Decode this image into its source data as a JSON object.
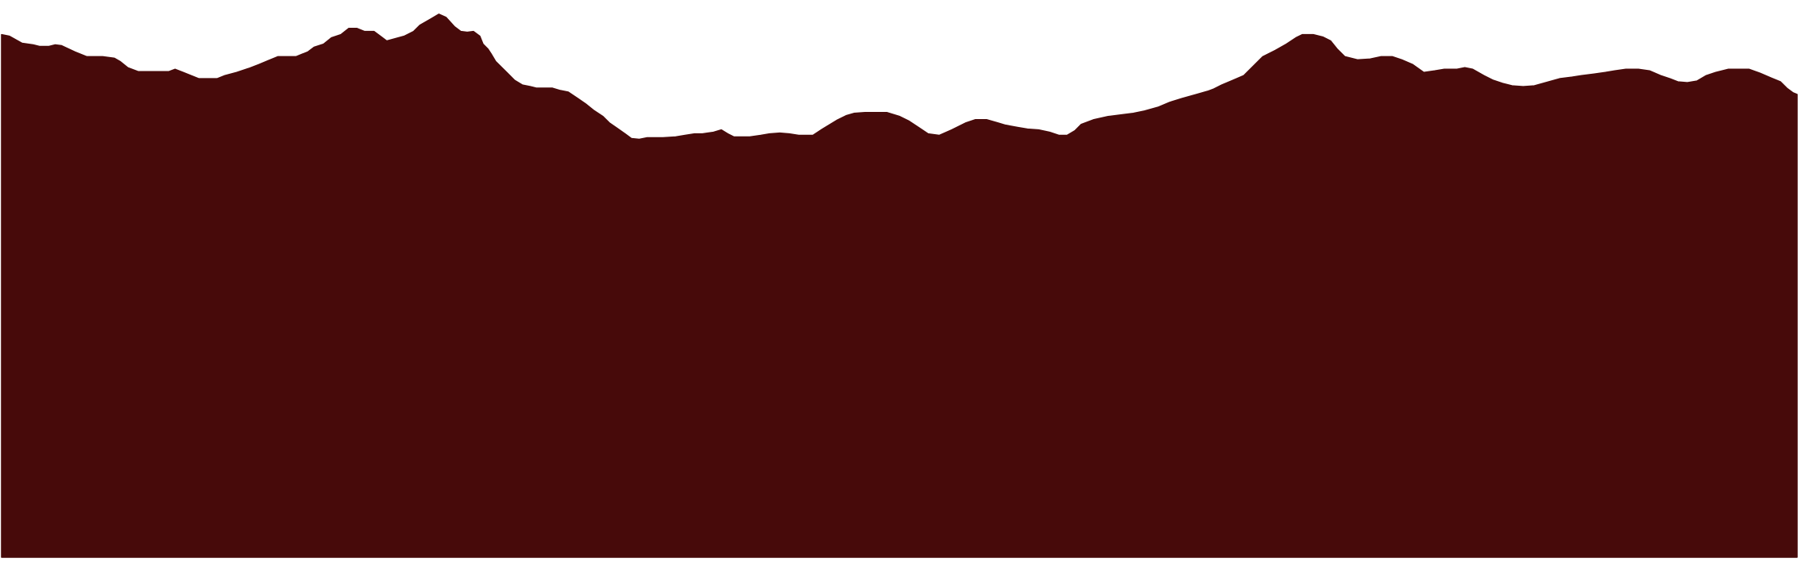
{
  "scene": {
    "background_color": "#ffffff",
    "fill_color": "#470a0a",
    "subject": "mountain-ridge-silhouette"
  }
}
